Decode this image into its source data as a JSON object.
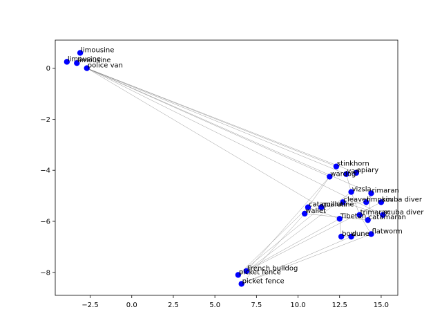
{
  "chart_data": {
    "type": "scatter",
    "title": "",
    "xlabel": "",
    "ylabel": "",
    "xlim": [
      -4.6,
      16.0
    ],
    "ylim": [
      -8.9,
      1.1
    ],
    "xticks": [
      -2.5,
      0.0,
      2.5,
      5.0,
      7.5,
      10.0,
      12.5,
      15.0
    ],
    "xtick_labels": [
      "−2.5",
      "0.0",
      "2.5",
      "5.0",
      "7.5",
      "10.0",
      "12.5",
      "15.0"
    ],
    "yticks": [
      0,
      -2,
      -4,
      -6,
      -8
    ],
    "ytick_labels": [
      "0",
      "−2",
      "−4",
      "−6",
      "−8"
    ],
    "point_color": "#0000ff",
    "line_color": "#808080",
    "points": [
      {
        "label": "limousine",
        "x": -3.1,
        "y": 0.6
      },
      {
        "label": "limousine",
        "x": -3.9,
        "y": 0.25
      },
      {
        "label": "limousine",
        "x": -3.3,
        "y": 0.2
      },
      {
        "label": "police van",
        "x": -2.7,
        "y": 0.0
      },
      {
        "label": "stinkhorn",
        "x": 12.3,
        "y": -3.85
      },
      {
        "label": "wardog",
        "x": 11.9,
        "y": -4.25
      },
      {
        "label": "van",
        "x": 12.9,
        "y": -4.15
      },
      {
        "label": "apiary",
        "x": 13.5,
        "y": -4.1
      },
      {
        "label": "vizsla",
        "x": 13.2,
        "y": -4.85
      },
      {
        "label": "rimaran",
        "x": 14.4,
        "y": -4.9
      },
      {
        "label": "cleaver",
        "x": 12.7,
        "y": -5.25
      },
      {
        "label": "scuba diver",
        "x": 15.0,
        "y": -5.25
      },
      {
        "label": "limpkin",
        "x": 14.1,
        "y": -5.25
      },
      {
        "label": "catamaran",
        "x": 10.6,
        "y": -5.45
      },
      {
        "label": "guillotine",
        "x": 11.4,
        "y": -5.45
      },
      {
        "label": "wallet",
        "x": 10.4,
        "y": -5.7
      },
      {
        "label": "trimaran",
        "x": 13.7,
        "y": -5.75
      },
      {
        "label": "scuba diver",
        "x": 15.1,
        "y": -5.75
      },
      {
        "label": "catamaran",
        "x": 14.2,
        "y": -5.95
      },
      {
        "label": "Tibetan",
        "x": 12.5,
        "y": -5.9
      },
      {
        "label": "flatworm",
        "x": 14.4,
        "y": -6.5
      },
      {
        "label": "bow",
        "x": 12.6,
        "y": -6.6
      },
      {
        "label": "dune",
        "x": 13.2,
        "y": -6.6
      },
      {
        "label": "French bulldog",
        "x": 6.9,
        "y": -7.95
      },
      {
        "label": "picket fence",
        "x": 6.4,
        "y": -8.1
      },
      {
        "label": "picket fence",
        "x": 6.6,
        "y": -8.45
      }
    ],
    "edges": [
      [
        3,
        4
      ],
      [
        3,
        5
      ],
      [
        3,
        6
      ],
      [
        3,
        7
      ],
      [
        3,
        9
      ],
      [
        3,
        14
      ],
      [
        3,
        17
      ],
      [
        23,
        5
      ],
      [
        23,
        8
      ],
      [
        23,
        11
      ],
      [
        24,
        13
      ],
      [
        24,
        14
      ],
      [
        24,
        19
      ],
      [
        25,
        15
      ],
      [
        25,
        20
      ],
      [
        25,
        22
      ],
      [
        5,
        13
      ],
      [
        13,
        19
      ],
      [
        19,
        21
      ],
      [
        14,
        12
      ],
      [
        8,
        16
      ],
      [
        16,
        20
      ],
      [
        20,
        22
      ],
      [
        21,
        22
      ],
      [
        15,
        18
      ],
      [
        10,
        17
      ],
      [
        6,
        8
      ],
      [
        9,
        18
      ]
    ]
  }
}
